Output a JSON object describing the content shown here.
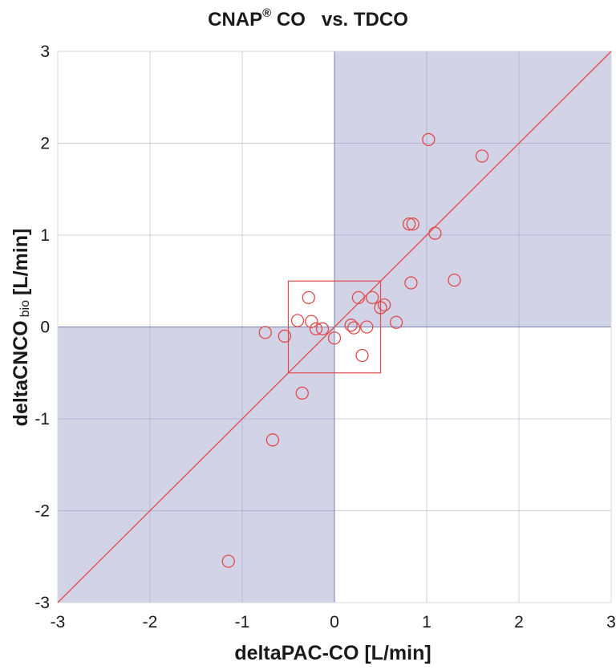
{
  "chart_data": {
    "type": "scatter",
    "title": {
      "main": "CNAP",
      "superscript": "®",
      "rest": " CO   vs. TDCO"
    },
    "xlabel": "deltaPAC-CO [L/min]",
    "ylabel": {
      "main": "deltaCNCO",
      "subscript": "bio",
      "rest": "[L/min]"
    },
    "xlim": [
      -3,
      3
    ],
    "ylim": [
      -3,
      3
    ],
    "xticks": [
      "-3",
      "-2",
      "-1",
      "0",
      "1",
      "2",
      "3"
    ],
    "yticks": [
      "-3",
      "-2",
      "-1",
      "0",
      "1",
      "2",
      "3"
    ],
    "grid": true,
    "quadrant_fill": "#d3d3e8",
    "quadrant_stroke": "#7f7fb0",
    "marker_color": "#e04a4a",
    "identity_line": {
      "from": [
        -3,
        -3
      ],
      "to": [
        3,
        3
      ]
    },
    "exclusion_zone": {
      "x": [
        -0.5,
        0.5
      ],
      "y": [
        -0.5,
        0.5
      ]
    },
    "points": [
      {
        "x": -1.15,
        "y": -2.55
      },
      {
        "x": -0.67,
        "y": -1.23
      },
      {
        "x": -0.35,
        "y": -0.72
      },
      {
        "x": -0.75,
        "y": -0.06
      },
      {
        "x": -0.54,
        "y": -0.1
      },
      {
        "x": -0.4,
        "y": 0.07
      },
      {
        "x": -0.28,
        "y": 0.32
      },
      {
        "x": -0.25,
        "y": 0.06
      },
      {
        "x": -0.2,
        "y": -0.02
      },
      {
        "x": -0.13,
        "y": -0.02
      },
      {
        "x": 0.0,
        "y": -0.12
      },
      {
        "x": 0.18,
        "y": 0.02
      },
      {
        "x": 0.21,
        "y": -0.01
      },
      {
        "x": 0.26,
        "y": 0.32
      },
      {
        "x": 0.3,
        "y": -0.31
      },
      {
        "x": 0.35,
        "y": 0.0
      },
      {
        "x": 0.41,
        "y": 0.32
      },
      {
        "x": 0.5,
        "y": 0.21
      },
      {
        "x": 0.54,
        "y": 0.24
      },
      {
        "x": 0.67,
        "y": 0.05
      },
      {
        "x": 0.81,
        "y": 1.12
      },
      {
        "x": 0.85,
        "y": 1.12
      },
      {
        "x": 0.83,
        "y": 0.48
      },
      {
        "x": 1.09,
        "y": 1.02
      },
      {
        "x": 1.3,
        "y": 0.51
      },
      {
        "x": 1.02,
        "y": 2.04
      },
      {
        "x": 1.6,
        "y": 1.86
      }
    ]
  }
}
